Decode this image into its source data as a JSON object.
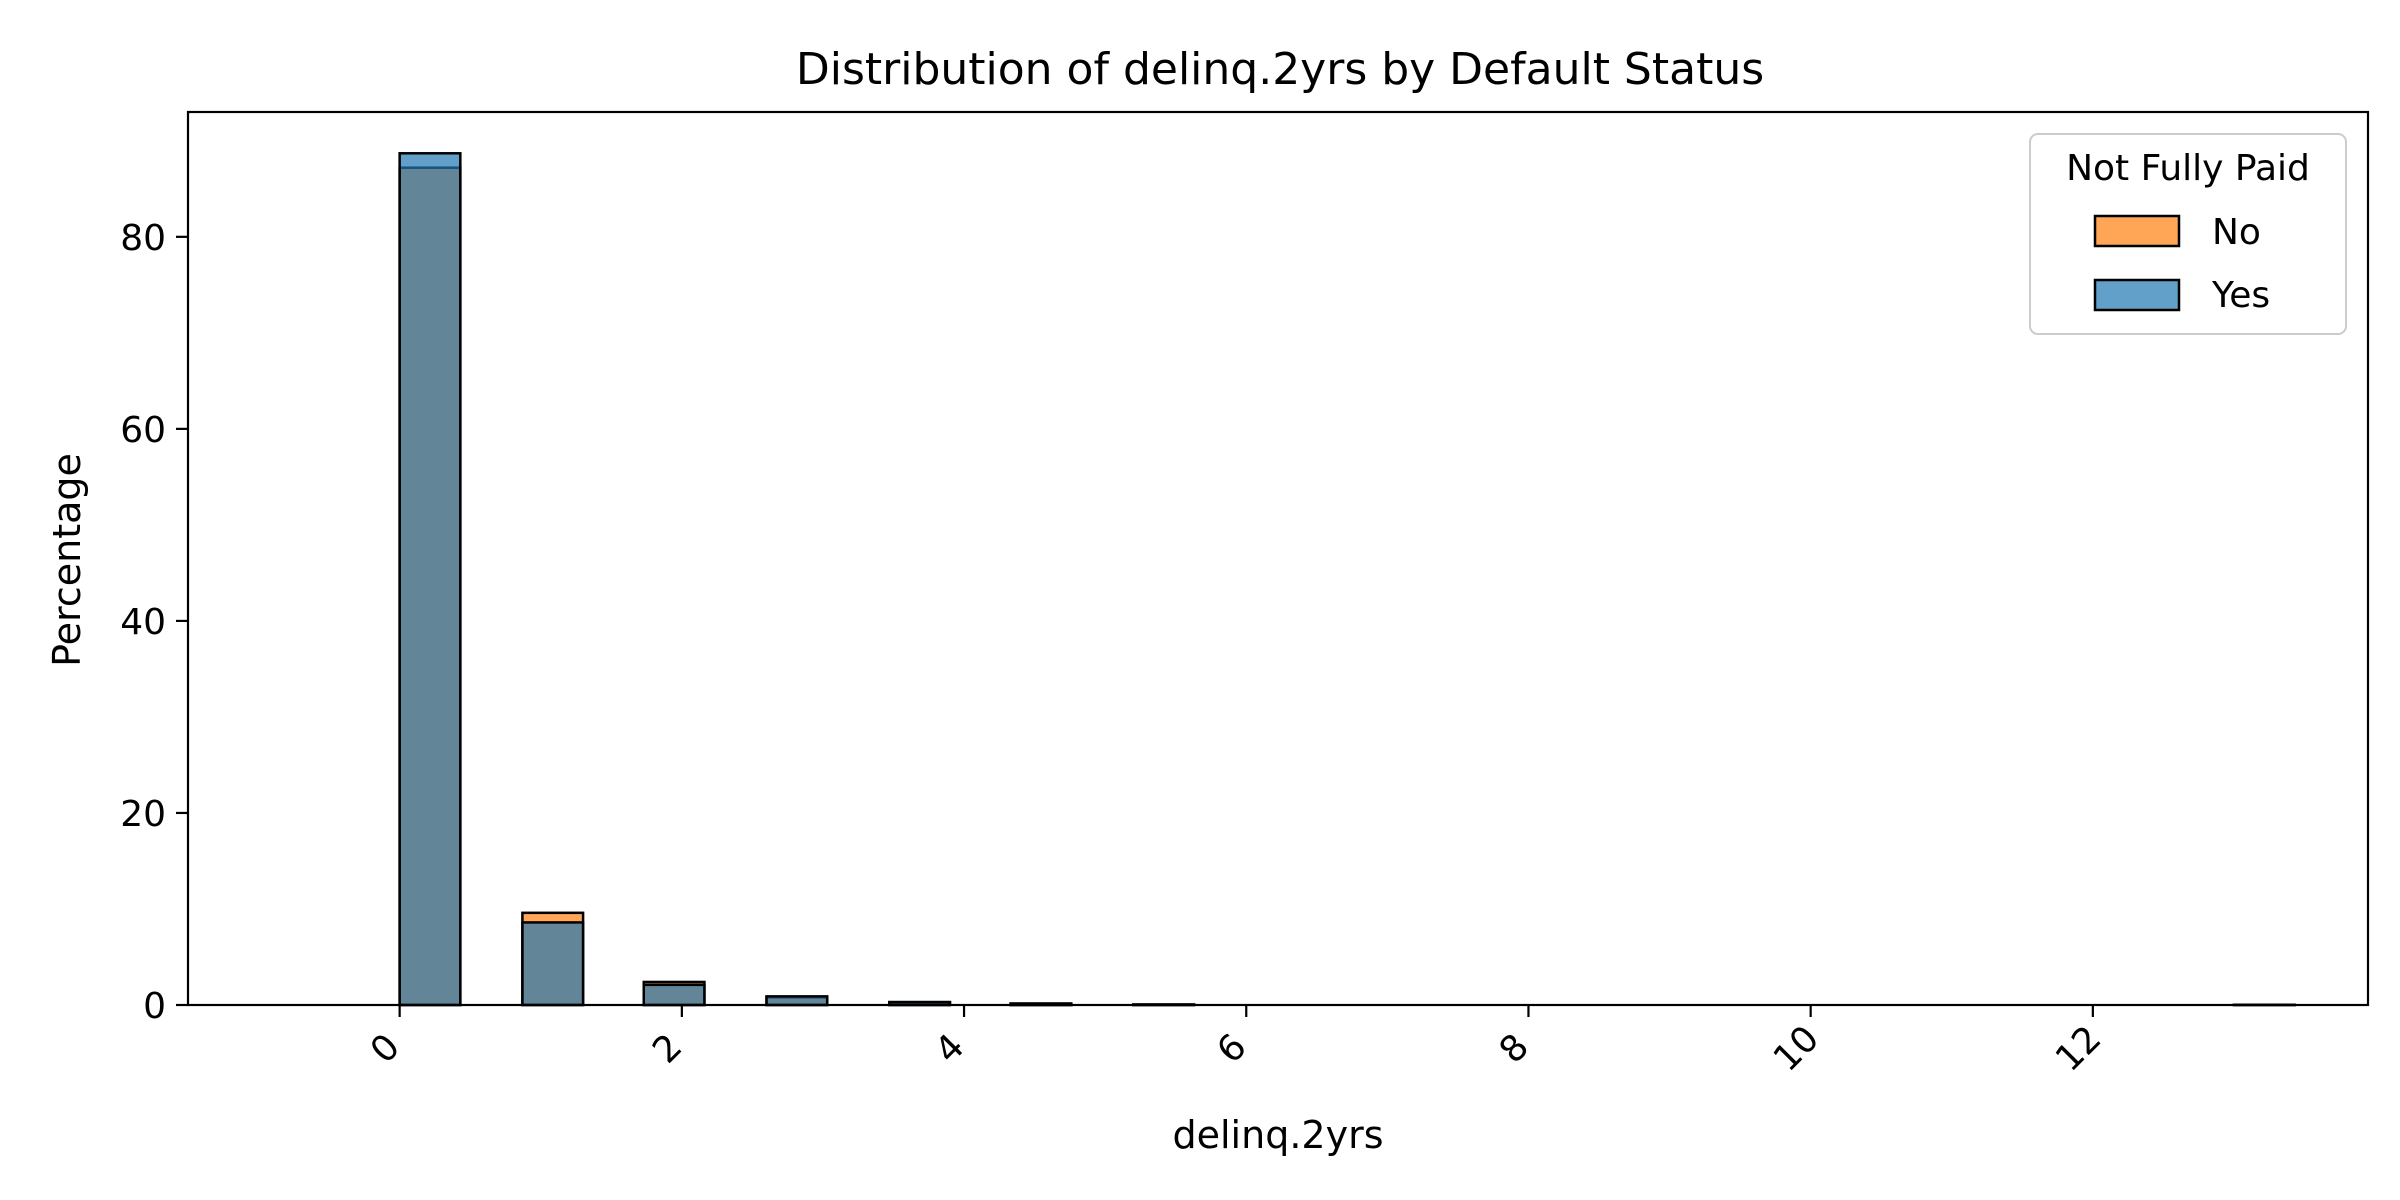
{
  "chart_data": {
    "type": "bar",
    "title": "Distribution of delinq.2yrs by Default Status",
    "xlabel": "delinq.2yrs",
    "ylabel": "Percentage",
    "xlim": [
      -1.5,
      13.95
    ],
    "ylim": [
      0,
      93
    ],
    "bin_width": 0.43,
    "x_ticks": [
      0,
      2,
      4,
      6,
      8,
      10,
      12
    ],
    "x_tick_rotation": 45,
    "y_ticks": [
      0,
      20,
      40,
      60,
      80
    ],
    "grid": false,
    "legend": {
      "title": "Not Fully Paid",
      "placement": "top-right"
    },
    "bins": [
      0,
      0.87,
      1.73,
      2.6,
      3.47,
      4.33,
      5.2,
      6.07,
      6.93,
      7.8,
      8.67,
      9.53,
      10.4,
      11.27,
      12.13,
      13.0
    ],
    "series": [
      {
        "name": "No",
        "color": "#ff7f0e",
        "values": [
          87.2,
          9.6,
          2.4,
          0.8,
          0.3,
          0.15,
          0.05,
          0,
          0,
          0,
          0,
          0,
          0,
          0,
          0,
          0.02
        ]
      },
      {
        "name": "Yes",
        "color": "#1f77b4",
        "values": [
          88.7,
          8.6,
          2.1,
          0.9,
          0.3,
          0.15,
          0.05,
          0,
          0,
          0,
          0,
          0,
          0,
          0,
          0,
          0.02
        ]
      }
    ]
  }
}
